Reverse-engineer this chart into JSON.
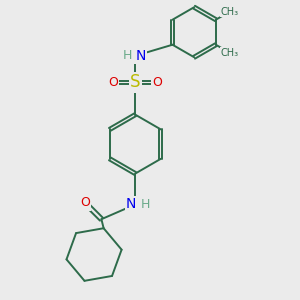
{
  "bg_color": "#ebebeb",
  "bond_color": "#2d6b4a",
  "bond_width": 1.4,
  "atom_colors": {
    "C": "#2d6b4a",
    "N": "#0000ee",
    "O": "#dd0000",
    "S": "#bbbb00",
    "H": "#6aaa8a"
  },
  "font_size": 9,
  "dbo": 0.055
}
